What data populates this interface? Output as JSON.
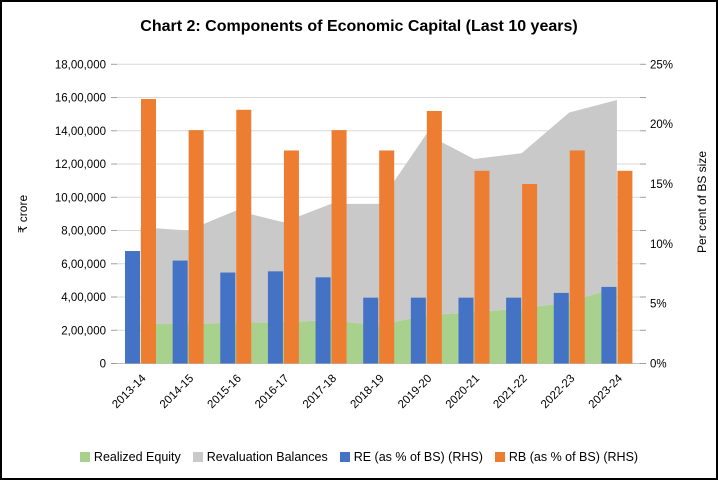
{
  "chart_data": {
    "type": "combo",
    "title": "Chart 2: Components of Economic Capital (Last 10 years)",
    "categories": [
      "2013-14",
      "2014-15",
      "2015-16",
      "2016-17",
      "2017-18",
      "2018-19",
      "2019-20",
      "2020-21",
      "2021-22",
      "2022-23",
      "2023-24"
    ],
    "left_axis": {
      "label": "₹ crore",
      "min": 0,
      "max": 1800000,
      "step": 200000,
      "tick_labels": [
        "0",
        "2,00,000",
        "4,00,000",
        "6,00,000",
        "8,00,000",
        "10,00,000",
        "12,00,000",
        "14,00,000",
        "16,00,000",
        "18,00,000"
      ],
      "format": "indian-comma"
    },
    "right_axis": {
      "label": "Per cent of BS size",
      "min": 0,
      "max": 25,
      "label_step": 5,
      "tick_labels": [
        "0%",
        "5%",
        "10%",
        "15%",
        "20%",
        "25%"
      ],
      "format": "percent"
    },
    "grid": true,
    "legend_position": "bottom",
    "series": [
      {
        "name": "Realized Equity",
        "type": "area",
        "stack": "economic-capital",
        "axis": "left",
        "color": "#A9D18E",
        "values": [
          240000,
          240000,
          245000,
          250000,
          260000,
          230000,
          290000,
          310000,
          330000,
          370000,
          460000
        ]
      },
      {
        "name": "Revaluation Balances",
        "type": "area",
        "stack": "economic-capital",
        "axis": "left",
        "color": "#C9C9C9",
        "values": [
          580000,
          560000,
          675000,
          600000,
          700000,
          730000,
          1090000,
          920000,
          935000,
          1140000,
          1125000
        ]
      },
      {
        "name": "RE (as % of BS) (RHS)",
        "type": "bar",
        "axis": "right",
        "color": "#4472C4",
        "values": [
          9.4,
          8.6,
          7.6,
          7.7,
          7.2,
          5.5,
          5.5,
          5.5,
          5.5,
          5.9,
          6.4
        ]
      },
      {
        "name": "RB (as % of BS) (RHS)",
        "type": "bar",
        "axis": "right",
        "color": "#ED7D31",
        "values": [
          22.1,
          19.5,
          21.2,
          17.8,
          19.5,
          17.8,
          21.1,
          16.1,
          15.0,
          17.8,
          16.1
        ]
      }
    ]
  }
}
